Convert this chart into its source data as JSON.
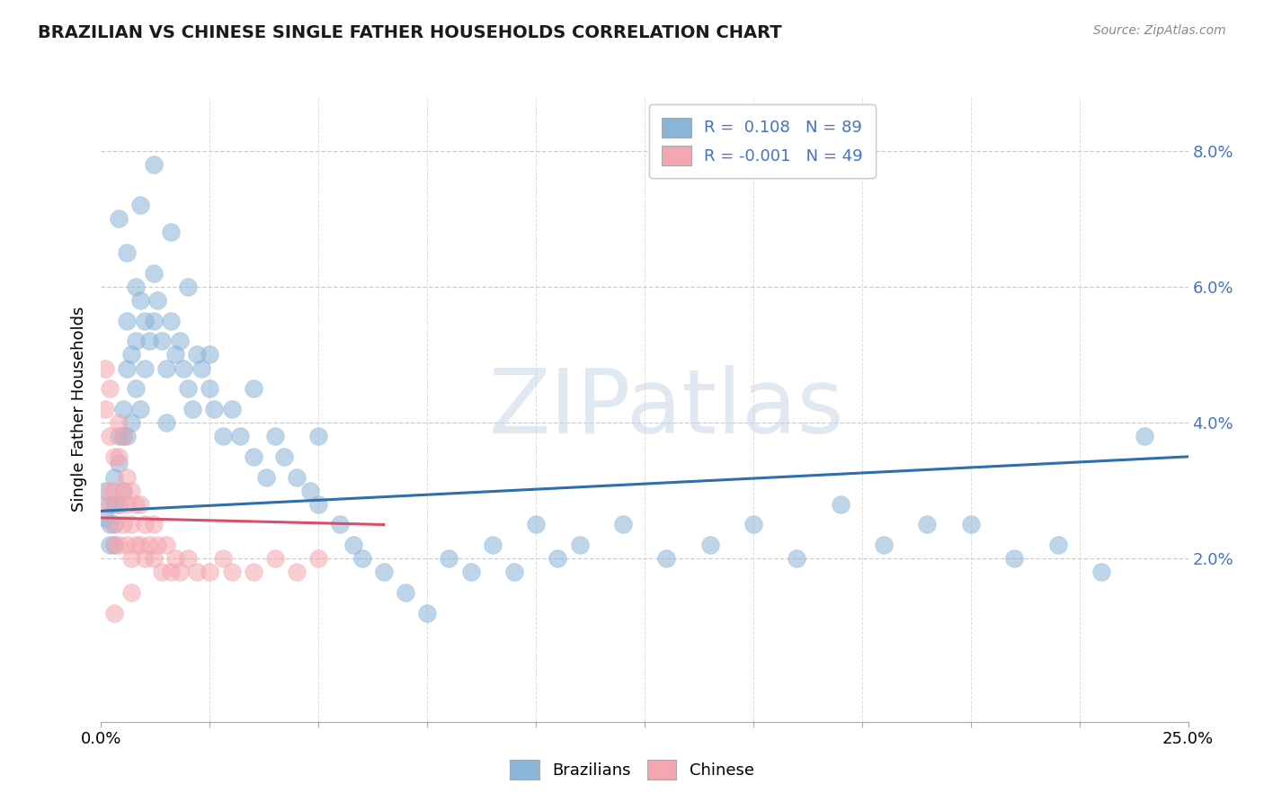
{
  "title": "BRAZILIAN VS CHINESE SINGLE FATHER HOUSEHOLDS CORRELATION CHART",
  "source": "Source: ZipAtlas.com",
  "ylabel": "Single Father Households",
  "legend_labels": [
    "Brazilians",
    "Chinese"
  ],
  "legend_r": [
    "R =  0.108",
    "R = -0.001"
  ],
  "legend_n": [
    "N = 89",
    "N = 49"
  ],
  "blue_color": "#8ab4d8",
  "pink_color": "#f4a7b0",
  "blue_line_color": "#2e6fad",
  "pink_line_color": "#d94f6b",
  "watermark_color": "#d0dce8",
  "xlim": [
    0.0,
    0.25
  ],
  "ylim": [
    -0.004,
    0.088
  ],
  "ytick_vals": [
    0.02,
    0.04,
    0.06,
    0.08
  ],
  "ytick_labels": [
    "2.0%",
    "4.0%",
    "6.0%",
    "8.0%"
  ],
  "blue_x": [
    0.001,
    0.001,
    0.002,
    0.002,
    0.002,
    0.003,
    0.003,
    0.003,
    0.003,
    0.004,
    0.004,
    0.004,
    0.005,
    0.005,
    0.005,
    0.006,
    0.006,
    0.006,
    0.007,
    0.007,
    0.008,
    0.008,
    0.008,
    0.009,
    0.009,
    0.01,
    0.01,
    0.011,
    0.012,
    0.012,
    0.013,
    0.014,
    0.015,
    0.015,
    0.016,
    0.017,
    0.018,
    0.019,
    0.02,
    0.021,
    0.022,
    0.023,
    0.025,
    0.026,
    0.028,
    0.03,
    0.032,
    0.035,
    0.038,
    0.04,
    0.042,
    0.045,
    0.048,
    0.05,
    0.055,
    0.058,
    0.06,
    0.065,
    0.07,
    0.075,
    0.08,
    0.085,
    0.09,
    0.095,
    0.1,
    0.105,
    0.11,
    0.12,
    0.13,
    0.14,
    0.15,
    0.16,
    0.17,
    0.18,
    0.19,
    0.2,
    0.21,
    0.22,
    0.23,
    0.24,
    0.004,
    0.006,
    0.009,
    0.012,
    0.016,
    0.02,
    0.025,
    0.035,
    0.05
  ],
  "blue_y": [
    0.03,
    0.026,
    0.028,
    0.025,
    0.022,
    0.032,
    0.028,
    0.025,
    0.022,
    0.038,
    0.034,
    0.028,
    0.042,
    0.038,
    0.03,
    0.055,
    0.048,
    0.038,
    0.05,
    0.04,
    0.06,
    0.052,
    0.045,
    0.058,
    0.042,
    0.055,
    0.048,
    0.052,
    0.062,
    0.055,
    0.058,
    0.052,
    0.048,
    0.04,
    0.055,
    0.05,
    0.052,
    0.048,
    0.045,
    0.042,
    0.05,
    0.048,
    0.045,
    0.042,
    0.038,
    0.042,
    0.038,
    0.035,
    0.032,
    0.038,
    0.035,
    0.032,
    0.03,
    0.028,
    0.025,
    0.022,
    0.02,
    0.018,
    0.015,
    0.012,
    0.02,
    0.018,
    0.022,
    0.018,
    0.025,
    0.02,
    0.022,
    0.025,
    0.02,
    0.022,
    0.025,
    0.02,
    0.028,
    0.022,
    0.025,
    0.025,
    0.02,
    0.022,
    0.018,
    0.038,
    0.07,
    0.065,
    0.072,
    0.078,
    0.068,
    0.06,
    0.05,
    0.045,
    0.038
  ],
  "pink_x": [
    0.001,
    0.001,
    0.001,
    0.002,
    0.002,
    0.002,
    0.003,
    0.003,
    0.003,
    0.003,
    0.004,
    0.004,
    0.004,
    0.004,
    0.005,
    0.005,
    0.005,
    0.006,
    0.006,
    0.006,
    0.007,
    0.007,
    0.007,
    0.008,
    0.008,
    0.009,
    0.009,
    0.01,
    0.01,
    0.011,
    0.012,
    0.012,
    0.013,
    0.014,
    0.015,
    0.016,
    0.017,
    0.018,
    0.02,
    0.022,
    0.025,
    0.028,
    0.03,
    0.035,
    0.04,
    0.045,
    0.05,
    0.003,
    0.007
  ],
  "pink_y": [
    0.048,
    0.042,
    0.028,
    0.045,
    0.038,
    0.03,
    0.035,
    0.03,
    0.025,
    0.022,
    0.04,
    0.035,
    0.028,
    0.022,
    0.038,
    0.03,
    0.025,
    0.032,
    0.028,
    0.022,
    0.03,
    0.025,
    0.02,
    0.028,
    0.022,
    0.028,
    0.022,
    0.025,
    0.02,
    0.022,
    0.025,
    0.02,
    0.022,
    0.018,
    0.022,
    0.018,
    0.02,
    0.018,
    0.02,
    0.018,
    0.018,
    0.02,
    0.018,
    0.018,
    0.02,
    0.018,
    0.02,
    0.012,
    0.015
  ],
  "blue_trend_x0": 0.0,
  "blue_trend_y0": 0.027,
  "blue_trend_x1": 0.25,
  "blue_trend_y1": 0.035,
  "pink_trend_x0": 0.0,
  "pink_trend_y0": 0.026,
  "pink_trend_x1": 0.065,
  "pink_trend_y1": 0.025
}
